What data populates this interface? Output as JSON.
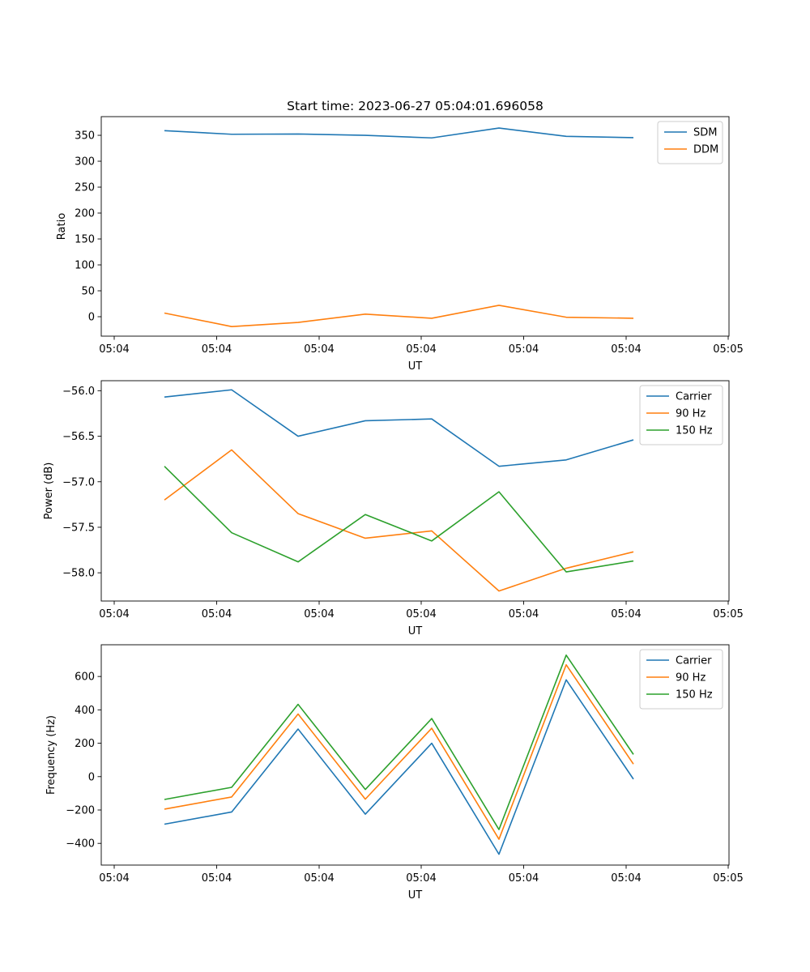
{
  "figure_title": "Start time: 2023-06-27 05:04:01.696058",
  "chart_data": [
    {
      "type": "line",
      "title": "Start time: 2023-06-27 05:04:01.696058",
      "xlabel": "UT",
      "ylabel": "Ratio",
      "x_tick_labels": [
        "05:04",
        "05:04",
        "05:04",
        "05:04",
        "05:04",
        "05:04",
        "05:05"
      ],
      "y_ticks": [
        0,
        50,
        100,
        150,
        200,
        250,
        300,
        350
      ],
      "ylim": [
        -37.5,
        386
      ],
      "legend_placement": "upper right",
      "grid": false,
      "series": [
        {
          "name": "SDM",
          "color": "#1f77b4",
          "values": [
            359,
            352,
            352.5,
            350,
            345,
            364,
            348,
            345.5
          ]
        },
        {
          "name": "DDM",
          "color": "#ff7f0e",
          "values": [
            7,
            -19,
            -11,
            5,
            -3,
            22,
            -1,
            -3
          ]
        }
      ]
    },
    {
      "type": "line",
      "title": "",
      "xlabel": "UT",
      "ylabel": "Power (dB)",
      "x_tick_labels": [
        "05:04",
        "05:04",
        "05:04",
        "05:04",
        "05:04",
        "05:04",
        "05:05"
      ],
      "y_ticks": [
        -56.0,
        -56.5,
        -57.0,
        -57.5,
        -58.0
      ],
      "y_tick_labels": [
        "−56.0",
        "−56.5",
        "−57.0",
        "−57.5",
        "−58.0"
      ],
      "ylim": [
        -58.31,
        -55.89
      ],
      "legend_placement": "upper right",
      "grid": false,
      "series": [
        {
          "name": "Carrier",
          "color": "#1f77b4",
          "values": [
            -56.07,
            -55.99,
            -56.5,
            -56.33,
            -56.31,
            -56.83,
            -56.76,
            -56.54
          ]
        },
        {
          "name": "90 Hz",
          "color": "#ff7f0e",
          "values": [
            -57.2,
            -56.65,
            -57.35,
            -57.62,
            -57.54,
            -58.2,
            -57.95,
            -57.77
          ]
        },
        {
          "name": "150 Hz",
          "color": "#2ca02c",
          "values": [
            -56.83,
            -57.56,
            -57.88,
            -57.36,
            -57.65,
            -57.11,
            -57.99,
            -57.87
          ]
        }
      ]
    },
    {
      "type": "line",
      "title": "",
      "xlabel": "UT",
      "ylabel": "Frequency (Hz)",
      "x_tick_labels": [
        "05:04",
        "05:04",
        "05:04",
        "05:04",
        "05:04",
        "05:04",
        "05:05"
      ],
      "y_ticks": [
        -400,
        -200,
        0,
        200,
        400,
        600
      ],
      "y_tick_labels": [
        "−400",
        "−200",
        "0",
        "200",
        "400",
        "600"
      ],
      "ylim": [
        -530,
        790
      ],
      "legend_placement": "upper right",
      "grid": false,
      "series": [
        {
          "name": "Carrier",
          "color": "#1f77b4",
          "values": [
            -285,
            -212,
            285,
            -225,
            200,
            -465,
            580,
            -15
          ]
        },
        {
          "name": "90 Hz",
          "color": "#ff7f0e",
          "values": [
            -195,
            -122,
            375,
            -135,
            290,
            -375,
            670,
            75
          ]
        },
        {
          "name": "150 Hz",
          "color": "#2ca02c",
          "values": [
            -137,
            -64,
            433,
            -77,
            348,
            -317,
            728,
            133
          ]
        }
      ]
    }
  ]
}
